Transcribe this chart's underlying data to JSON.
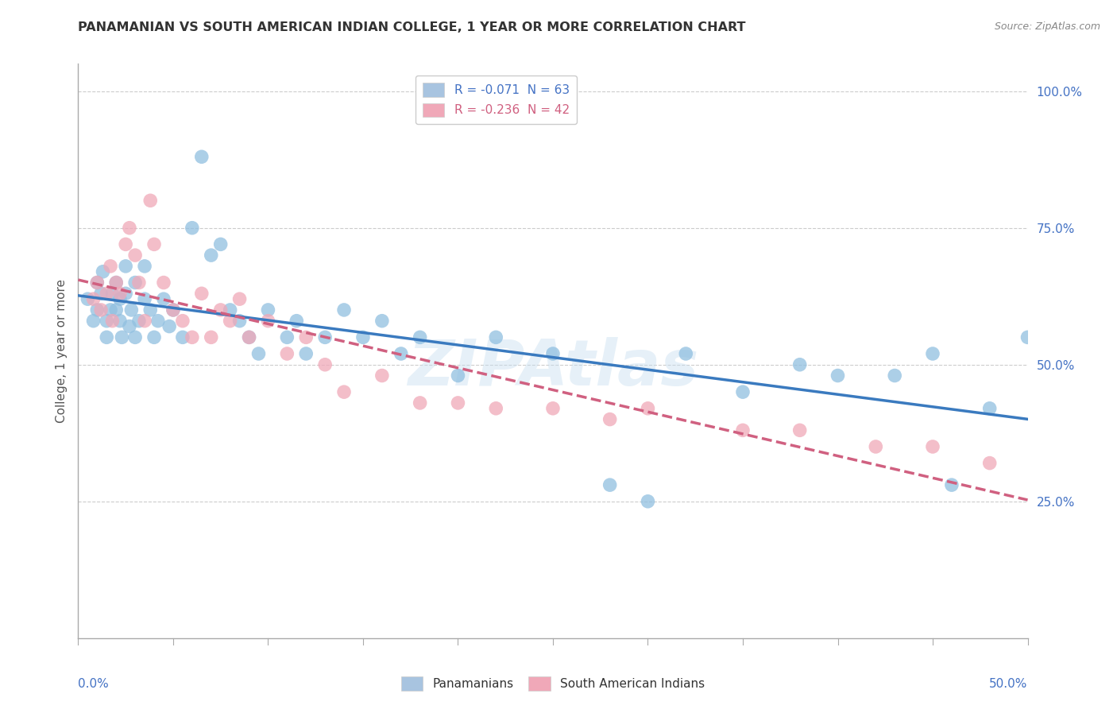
{
  "title": "PANAMANIAN VS SOUTH AMERICAN INDIAN COLLEGE, 1 YEAR OR MORE CORRELATION CHART",
  "source": "Source: ZipAtlas.com",
  "ylabel": "College, 1 year or more",
  "legend_items": [
    {
      "label": "R = -0.071  N = 63",
      "color": "#a8c4e0"
    },
    {
      "label": "R = -0.236  N = 42",
      "color": "#f0a8b8"
    }
  ],
  "legend_labels": [
    "Panamanians",
    "South American Indians"
  ],
  "blue_color": "#90bfe0",
  "pink_color": "#f0a8b8",
  "blue_line_color": "#3a7abf",
  "pink_line_color": "#d06080",
  "watermark": "ZIPAtlas",
  "xlim": [
    0.0,
    0.5
  ],
  "ylim": [
    0.0,
    1.05
  ],
  "yticks": [
    0.25,
    0.5,
    0.75,
    1.0
  ],
  "ytick_labels": [
    "25.0%",
    "50.0%",
    "75.0%",
    "100.0%"
  ],
  "blue_x": [
    0.005,
    0.008,
    0.01,
    0.01,
    0.012,
    0.013,
    0.015,
    0.015,
    0.017,
    0.018,
    0.02,
    0.02,
    0.022,
    0.022,
    0.023,
    0.025,
    0.025,
    0.027,
    0.028,
    0.03,
    0.03,
    0.032,
    0.035,
    0.035,
    0.038,
    0.04,
    0.042,
    0.045,
    0.048,
    0.05,
    0.055,
    0.06,
    0.065,
    0.07,
    0.075,
    0.08,
    0.085,
    0.09,
    0.095,
    0.1,
    0.11,
    0.115,
    0.12,
    0.13,
    0.14,
    0.15,
    0.16,
    0.17,
    0.18,
    0.2,
    0.22,
    0.25,
    0.28,
    0.3,
    0.32,
    0.35,
    0.38,
    0.4,
    0.43,
    0.45,
    0.46,
    0.48,
    0.5
  ],
  "blue_y": [
    0.62,
    0.58,
    0.65,
    0.6,
    0.63,
    0.67,
    0.58,
    0.55,
    0.6,
    0.63,
    0.65,
    0.6,
    0.58,
    0.62,
    0.55,
    0.63,
    0.68,
    0.57,
    0.6,
    0.65,
    0.55,
    0.58,
    0.62,
    0.68,
    0.6,
    0.55,
    0.58,
    0.62,
    0.57,
    0.6,
    0.55,
    0.75,
    0.88,
    0.7,
    0.72,
    0.6,
    0.58,
    0.55,
    0.52,
    0.6,
    0.55,
    0.58,
    0.52,
    0.55,
    0.6,
    0.55,
    0.58,
    0.52,
    0.55,
    0.48,
    0.55,
    0.52,
    0.28,
    0.25,
    0.52,
    0.45,
    0.5,
    0.48,
    0.48,
    0.52,
    0.28,
    0.42,
    0.55
  ],
  "pink_x": [
    0.008,
    0.01,
    0.012,
    0.015,
    0.017,
    0.018,
    0.02,
    0.022,
    0.025,
    0.027,
    0.03,
    0.032,
    0.035,
    0.038,
    0.04,
    0.045,
    0.05,
    0.055,
    0.06,
    0.065,
    0.07,
    0.075,
    0.08,
    0.085,
    0.09,
    0.1,
    0.11,
    0.12,
    0.13,
    0.14,
    0.16,
    0.18,
    0.2,
    0.22,
    0.25,
    0.28,
    0.3,
    0.35,
    0.38,
    0.42,
    0.45,
    0.48
  ],
  "pink_y": [
    0.62,
    0.65,
    0.6,
    0.63,
    0.68,
    0.58,
    0.65,
    0.63,
    0.72,
    0.75,
    0.7,
    0.65,
    0.58,
    0.8,
    0.72,
    0.65,
    0.6,
    0.58,
    0.55,
    0.63,
    0.55,
    0.6,
    0.58,
    0.62,
    0.55,
    0.58,
    0.52,
    0.55,
    0.5,
    0.45,
    0.48,
    0.43,
    0.43,
    0.42,
    0.42,
    0.4,
    0.42,
    0.38,
    0.38,
    0.35,
    0.35,
    0.32
  ]
}
